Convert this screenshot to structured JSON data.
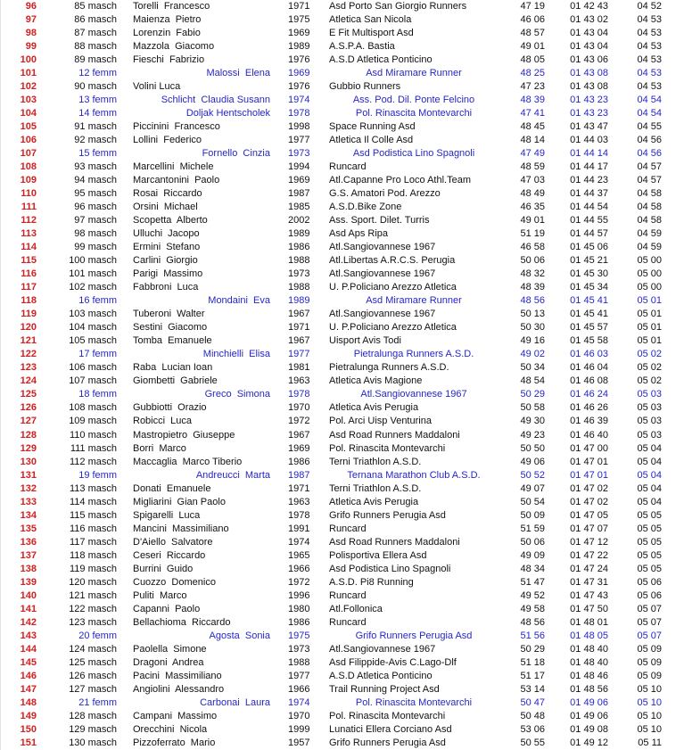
{
  "table": {
    "description": "Race results list, rows 96-151",
    "columns": [
      "position",
      "category",
      "name",
      "year",
      "team",
      "split_time",
      "finish_time",
      "pace"
    ],
    "colors": {
      "position_red": "#d42020",
      "female_blue": "#2626c9",
      "male_black": "#111111",
      "background": "#ffffff"
    },
    "rows": [
      {
        "pos": "96",
        "cat": "85 masch",
        "name": "Torelli  Francesco",
        "year": "1971",
        "team": "Asd Porto San Giorgio Runners",
        "t1": "47 19",
        "t2": "01 42 43",
        "pace": "04 52",
        "sex": "m"
      },
      {
        "pos": "97",
        "cat": "86 masch",
        "name": "Maienza  Pietro",
        "year": "1975",
        "team": "Atletica San Nicola",
        "t1": "46 06",
        "t2": "01 43 02",
        "pace": "04 53",
        "sex": "m"
      },
      {
        "pos": "98",
        "cat": "87 masch",
        "name": "Lorenzin  Fabio",
        "year": "1969",
        "team": "E Fit Multisport Asd",
        "t1": "48 57",
        "t2": "01 43 04",
        "pace": "04 53",
        "sex": "m"
      },
      {
        "pos": "99",
        "cat": "88 masch",
        "name": "Mazzola  Giacomo",
        "year": "1989",
        "team": "A.S.P.A. Bastia",
        "t1": "49 01",
        "t2": "01 43 04",
        "pace": "04 53",
        "sex": "m"
      },
      {
        "pos": "100",
        "cat": "89 masch",
        "name": "Fieschi  Fabrizio",
        "year": "1976",
        "team": "A.S.D Atletica Ponticino",
        "t1": "48 05",
        "t2": "01 43 06",
        "pace": "04 53",
        "sex": "m"
      },
      {
        "pos": "101",
        "cat": "12 femm",
        "name": "Malossi  Elena",
        "year": "1969",
        "team": "Asd Miramare Runner",
        "t1": "48 25",
        "t2": "01 43 08",
        "pace": "04 53",
        "sex": "f"
      },
      {
        "pos": "102",
        "cat": "90 masch",
        "name": "Volini Luca",
        "year": "1976",
        "team": "Gubbio Runners",
        "t1": "47 23",
        "t2": "01 43 08",
        "pace": "04 53",
        "sex": "m"
      },
      {
        "pos": "103",
        "cat": "13 femm",
        "name": "Schlicht  Claudia Susann",
        "year": "1974",
        "team": "Ass. Pod. Dil. Ponte Felcino",
        "t1": "48 39",
        "t2": "01 43 23",
        "pace": "04 54",
        "sex": "f"
      },
      {
        "pos": "104",
        "cat": "14 femm",
        "name": "Doljak Hentscholek",
        "year": "1978",
        "team": "Pol. Rinascita Montevarchi",
        "t1": "47 41",
        "t2": "01 43 23",
        "pace": "04 54",
        "sex": "f"
      },
      {
        "pos": "105",
        "cat": "91 masch",
        "name": "Piccinini  Francesco",
        "year": "1998",
        "team": "Space Running Asd",
        "t1": "48 45",
        "t2": "01 43 47",
        "pace": "04 55",
        "sex": "m"
      },
      {
        "pos": "106",
        "cat": "92 masch",
        "name": "Lollini  Federico",
        "year": "1977",
        "team": "Atletica Il Colle Asd",
        "t1": "48 14",
        "t2": "01 44 03",
        "pace": "04 56",
        "sex": "m"
      },
      {
        "pos": "107",
        "cat": "15 femm",
        "name": "Fornello  Cinzia",
        "year": "1973",
        "team": "Asd Podistica Lino Spagnoli",
        "t1": "47 49",
        "t2": "01 44 14",
        "pace": "04 56",
        "sex": "f"
      },
      {
        "pos": "108",
        "cat": "93 masch",
        "name": "Marcellini  Michele",
        "year": "1994",
        "team": "Runcard",
        "t1": "48 59",
        "t2": "01 44 17",
        "pace": "04 57",
        "sex": "m"
      },
      {
        "pos": "109",
        "cat": "94 masch",
        "name": "Marcantonini  Paolo",
        "year": "1969",
        "team": "Atl.Capanne Pro Loco Athl.Team",
        "t1": "47 03",
        "t2": "01 44 23",
        "pace": "04 57",
        "sex": "m"
      },
      {
        "pos": "110",
        "cat": "95 masch",
        "name": "Rosai  Riccardo",
        "year": "1987",
        "team": "G.S. Amatori Pod. Arezzo",
        "t1": "48 49",
        "t2": "01 44 37",
        "pace": "04 58",
        "sex": "m"
      },
      {
        "pos": "111",
        "cat": "96 masch",
        "name": "Orsini  Michael",
        "year": "1985",
        "team": "A.S.D.Bike Zone",
        "t1": "46 35",
        "t2": "01 44 54",
        "pace": "04 58",
        "sex": "m"
      },
      {
        "pos": "112",
        "cat": "97 masch",
        "name": "Scopetta  Alberto",
        "year": "2002",
        "team": "Ass. Sport. Dilet. Turris",
        "t1": "49 01",
        "t2": "01 44 55",
        "pace": "04 58",
        "sex": "m"
      },
      {
        "pos": "113",
        "cat": "98 masch",
        "name": "Ulluchi  Jacopo",
        "year": "1989",
        "team": "Asd Aps Ripa",
        "t1": "51 19",
        "t2": "01 44 57",
        "pace": "04 59",
        "sex": "m"
      },
      {
        "pos": "114",
        "cat": "99 masch",
        "name": "Ermini  Stefano",
        "year": "1986",
        "team": "Atl.Sangiovannese 1967",
        "t1": "46 58",
        "t2": "01 45 06",
        "pace": "04 59",
        "sex": "m"
      },
      {
        "pos": "115",
        "cat": "100 masch",
        "name": "Carlini  Giorgio",
        "year": "1988",
        "team": "Atl.Libertas A.R.C.S. Perugia",
        "t1": "50 06",
        "t2": "01 45 21",
        "pace": "05 00",
        "sex": "m"
      },
      {
        "pos": "116",
        "cat": "101 masch",
        "name": "Parigi  Massimo",
        "year": "1973",
        "team": "Atl.Sangiovannese 1967",
        "t1": "48 32",
        "t2": "01 45 30",
        "pace": "05 00",
        "sex": "m"
      },
      {
        "pos": "117",
        "cat": "102 masch",
        "name": "Fabbroni  Luca",
        "year": "1988",
        "team": "U. P.Policiano Arezzo Atletica",
        "t1": "48 39",
        "t2": "01 45 34",
        "pace": "05 00",
        "sex": "m"
      },
      {
        "pos": "118",
        "cat": "16 femm",
        "name": "Mondaini  Eva",
        "year": "1989",
        "team": "Asd Miramare Runner",
        "t1": "48 56",
        "t2": "01 45 41",
        "pace": "05 01",
        "sex": "f"
      },
      {
        "pos": "119",
        "cat": "103 masch",
        "name": "Tuberoni  Walter",
        "year": "1967",
        "team": "Atl.Sangiovannese 1967",
        "t1": "50 13",
        "t2": "01 45 41",
        "pace": "05 01",
        "sex": "m"
      },
      {
        "pos": "120",
        "cat": "104 masch",
        "name": "Sestini  Giacomo",
        "year": "1971",
        "team": "U. P.Policiano Arezzo Atletica",
        "t1": "50 30",
        "t2": "01 45 57",
        "pace": "05 01",
        "sex": "m"
      },
      {
        "pos": "121",
        "cat": "105 masch",
        "name": "Tomba  Emanuele",
        "year": "1967",
        "team": "Uisport Avis Todi",
        "t1": "49 16",
        "t2": "01 45 58",
        "pace": "05 01",
        "sex": "m"
      },
      {
        "pos": "122",
        "cat": "17 femm",
        "name": "Minchielli  Elisa",
        "year": "1977",
        "team": "Pietralunga Runners A.S.D.",
        "t1": "49 02",
        "t2": "01 46 03",
        "pace": "05 02",
        "sex": "f"
      },
      {
        "pos": "123",
        "cat": "106 masch",
        "name": "Raba  Lucian Ioan",
        "year": "1981",
        "team": "Pietralunga Runners A.S.D.",
        "t1": "50 34",
        "t2": "01 46 04",
        "pace": "05 02",
        "sex": "m"
      },
      {
        "pos": "124",
        "cat": "107 masch",
        "name": "Giombetti  Gabriele",
        "year": "1963",
        "team": "Atletica Avis Magione",
        "t1": "48 54",
        "t2": "01 46 08",
        "pace": "05 02",
        "sex": "m"
      },
      {
        "pos": "125",
        "cat": "18 femm",
        "name": "Greco  Simona",
        "year": "1978",
        "team": "Atl.Sangiovannese 1967",
        "t1": "50 29",
        "t2": "01 46 24",
        "pace": "05 03",
        "sex": "f"
      },
      {
        "pos": "126",
        "cat": "108 masch",
        "name": "Gubbiotti  Orazio",
        "year": "1970",
        "team": "Atletica Avis Perugia",
        "t1": "50 58",
        "t2": "01 46 26",
        "pace": "05 03",
        "sex": "m"
      },
      {
        "pos": "127",
        "cat": "109 masch",
        "name": "Robicci  Luca",
        "year": "1972",
        "team": "Pol. Arci Uisp Venturina",
        "t1": "49 30",
        "t2": "01 46 39",
        "pace": "05 03",
        "sex": "m"
      },
      {
        "pos": "128",
        "cat": "110 masch",
        "name": "Mastropietro  Giuseppe",
        "year": "1967",
        "team": "Asd Road Runners Maddaloni",
        "t1": "49 23",
        "t2": "01 46 40",
        "pace": "05 03",
        "sex": "m"
      },
      {
        "pos": "129",
        "cat": "111 masch",
        "name": "Borri  Marco",
        "year": "1969",
        "team": "Pol. Rinascita Montevarchi",
        "t1": "50 50",
        "t2": "01 47 00",
        "pace": "05 04",
        "sex": "m"
      },
      {
        "pos": "130",
        "cat": "112 masch",
        "name": "Maccaglia  Marco Tiberio",
        "year": "1986",
        "team": "Terni Triathlon A.S.D.",
        "t1": "49 06",
        "t2": "01 47 01",
        "pace": "05 04",
        "sex": "m"
      },
      {
        "pos": "131",
        "cat": "19 femm",
        "name": "Andreucci  Marta",
        "year": "1987",
        "team": "Ternana Marathon Club A.S.D.",
        "t1": "50 52",
        "t2": "01 47 01",
        "pace": "05 04",
        "sex": "f"
      },
      {
        "pos": "132",
        "cat": "113 masch",
        "name": "Donati  Emanuele",
        "year": "1971",
        "team": "Terni Triathlon A.S.D.",
        "t1": "49 07",
        "t2": "01 47 02",
        "pace": "05 04",
        "sex": "m"
      },
      {
        "pos": "133",
        "cat": "114 masch",
        "name": "Migliarini  Gian Paolo",
        "year": "1963",
        "team": "Atletica Avis Perugia",
        "t1": "50 54",
        "t2": "01 47 02",
        "pace": "05 04",
        "sex": "m"
      },
      {
        "pos": "134",
        "cat": "115 masch",
        "name": "Spigarelli  Luca",
        "year": "1978",
        "team": "Grifo Runners Perugia Asd",
        "t1": "50 09",
        "t2": "01 47 05",
        "pace": "05 05",
        "sex": "m"
      },
      {
        "pos": "135",
        "cat": "116 masch",
        "name": "Mancini  Massimiliano",
        "year": "1991",
        "team": "Runcard",
        "t1": "51 59",
        "t2": "01 47 07",
        "pace": "05 05",
        "sex": "m"
      },
      {
        "pos": "136",
        "cat": "117 masch",
        "name": "D'Aiello  Salvatore",
        "year": "1974",
        "team": "Asd Road Runners Maddaloni",
        "t1": "50 06",
        "t2": "01 47 12",
        "pace": "05 05",
        "sex": "m"
      },
      {
        "pos": "137",
        "cat": "118 masch",
        "name": "Ceseri  Riccardo",
        "year": "1965",
        "team": "Polisportiva Ellera Asd",
        "t1": "49 09",
        "t2": "01 47 22",
        "pace": "05 05",
        "sex": "m"
      },
      {
        "pos": "138",
        "cat": "119 masch",
        "name": "Burrini  Guido",
        "year": "1966",
        "team": "Asd Podistica Lino Spagnoli",
        "t1": "48 34",
        "t2": "01 47 24",
        "pace": "05 05",
        "sex": "m"
      },
      {
        "pos": "139",
        "cat": "120 masch",
        "name": "Cuozzo  Domenico",
        "year": "1972",
        "team": "A.S.D. Pi8 Running",
        "t1": "51 47",
        "t2": "01 47 31",
        "pace": "05 06",
        "sex": "m"
      },
      {
        "pos": "140",
        "cat": "121 masch",
        "name": "Puliti  Marco",
        "year": "1996",
        "team": "Runcard",
        "t1": "49 52",
        "t2": "01 47 43",
        "pace": "05 06",
        "sex": "m"
      },
      {
        "pos": "141",
        "cat": "122 masch",
        "name": "Capanni  Paolo",
        "year": "1980",
        "team": "Atl.Follonica",
        "t1": "49 58",
        "t2": "01 47 50",
        "pace": "05 07",
        "sex": "m"
      },
      {
        "pos": "142",
        "cat": "123 masch",
        "name": "Bellachioma  Riccardo",
        "year": "1986",
        "team": "Runcard",
        "t1": "48 56",
        "t2": "01 48 01",
        "pace": "05 07",
        "sex": "m"
      },
      {
        "pos": "143",
        "cat": "20 femm",
        "name": "Agosta  Sonia",
        "year": "1975",
        "team": "Grifo Runners Perugia Asd",
        "t1": "51 56",
        "t2": "01 48 05",
        "pace": "05 07",
        "sex": "f"
      },
      {
        "pos": "144",
        "cat": "124 masch",
        "name": "Paolella  Simone",
        "year": "1973",
        "team": "Atl.Sangiovannese 1967",
        "t1": "50 29",
        "t2": "01 48 40",
        "pace": "05 09",
        "sex": "m"
      },
      {
        "pos": "145",
        "cat": "125 masch",
        "name": "Dragoni  Andrea",
        "year": "1988",
        "team": "Asd Filippide-Avis C.Lago-Dlf",
        "t1": "51 18",
        "t2": "01 48 40",
        "pace": "05 09",
        "sex": "m"
      },
      {
        "pos": "146",
        "cat": "126 masch",
        "name": "Pacini  Massimiliano",
        "year": "1977",
        "team": "A.S.D Atletica Ponticino",
        "t1": "51 17",
        "t2": "01 48 46",
        "pace": "05 09",
        "sex": "m"
      },
      {
        "pos": "147",
        "cat": "127 masch",
        "name": "Angiolini  Alessandro",
        "year": "1966",
        "team": "Trail Running Project Asd",
        "t1": "53 14",
        "t2": "01 48 56",
        "pace": "05 10",
        "sex": "m"
      },
      {
        "pos": "148",
        "cat": "21 femm",
        "name": "Carbonai  Laura",
        "year": "1974",
        "team": "Pol. Rinascita Montevarchi",
        "t1": "50 47",
        "t2": "01 49 06",
        "pace": "05 10",
        "sex": "f"
      },
      {
        "pos": "149",
        "cat": "128 masch",
        "name": "Campani  Massimo",
        "year": "1970",
        "team": "Pol. Rinascita Montevarchi",
        "t1": "50 48",
        "t2": "01 49 06",
        "pace": "05 10",
        "sex": "m"
      },
      {
        "pos": "150",
        "cat": "129 masch",
        "name": "Orecchini  Nicola",
        "year": "1999",
        "team": "Lunatici Ellera Corciano Asd",
        "t1": "53 06",
        "t2": "01 49 08",
        "pace": "05 10",
        "sex": "m"
      },
      {
        "pos": "151",
        "cat": "130 masch",
        "name": "Pizzoferrato  Mario",
        "year": "1957",
        "team": "Grifo Runners Perugia Asd",
        "t1": "50 55",
        "t2": "01 49 12",
        "pace": "05 11",
        "sex": "m"
      }
    ]
  }
}
